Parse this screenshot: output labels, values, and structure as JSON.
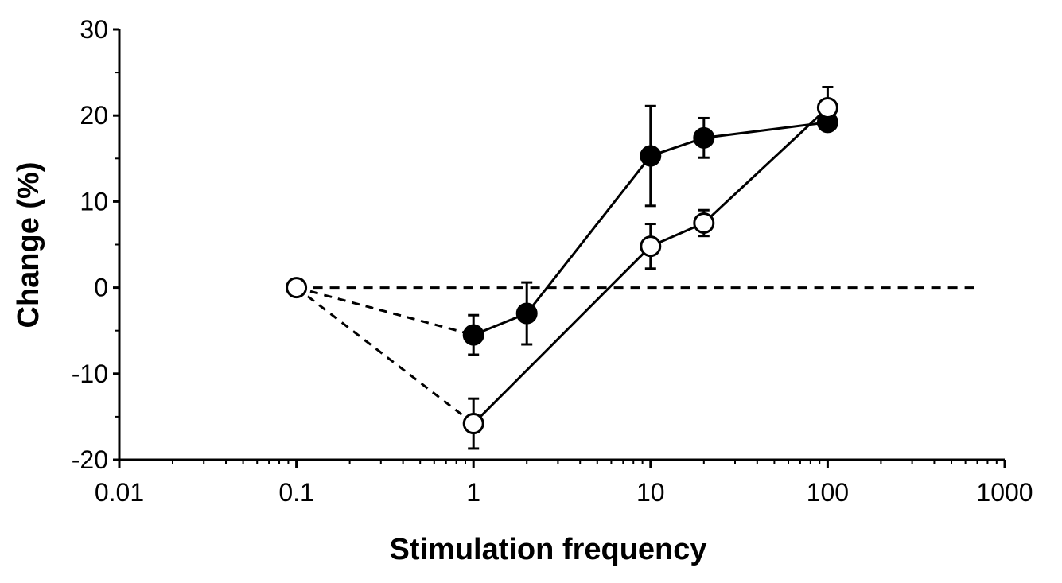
{
  "chart_data": {
    "type": "scatter",
    "title": "",
    "xlabel": "Stimulation frequency",
    "ylabel": "Change (%)",
    "x_scale": "log",
    "xlim": [
      0.01,
      1000
    ],
    "ylim": [
      -20,
      30
    ],
    "x_ticks": [
      0.01,
      0.1,
      1,
      10,
      100,
      1000
    ],
    "x_tick_labels": [
      "0.01",
      "0.1",
      "1",
      "10",
      "100",
      "1000"
    ],
    "y_ticks": [
      -20,
      -10,
      0,
      10,
      20,
      30
    ],
    "y_tick_labels": [
      "-20",
      "-10",
      "0",
      "10",
      "20",
      "30"
    ],
    "grid": false,
    "reference_line": {
      "y": 0,
      "style": "dashed"
    },
    "origin_point": {
      "x": 0.1,
      "y": 0,
      "marker": "open-circle"
    },
    "series": [
      {
        "marker": "filled-circle",
        "color": "#000000",
        "x": [
          1,
          2,
          10,
          20,
          100
        ],
        "y": [
          -5.5,
          -3,
          15.3,
          17.4,
          19.2
        ],
        "err": [
          2.3,
          3.6,
          5.8,
          2.3,
          0.9
        ]
      },
      {
        "marker": "open-circle",
        "color": "#000000",
        "x": [
          1,
          10,
          20,
          100
        ],
        "y": [
          -15.8,
          4.8,
          7.5,
          20.9
        ],
        "err": [
          2.9,
          2.6,
          1.5,
          2.4
        ]
      }
    ]
  }
}
